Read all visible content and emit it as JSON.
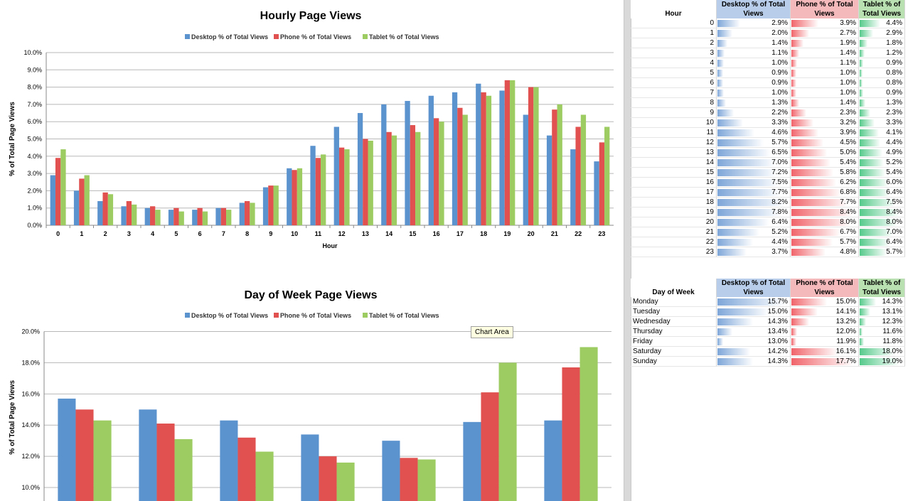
{
  "colors": {
    "desktop": "#5b93cf",
    "phone": "#e0514f",
    "tablet": "#9ccc62"
  },
  "chart_data": [
    {
      "type": "bar",
      "title": "Hourly Page Views",
      "xlabel": "Hour",
      "ylabel": "% of Total Page Views",
      "ylim": [
        0,
        10
      ],
      "yticks": [
        "0.0%",
        "1.0%",
        "2.0%",
        "3.0%",
        "4.0%",
        "5.0%",
        "6.0%",
        "7.0%",
        "8.0%",
        "9.0%",
        "10.0%"
      ],
      "legend": "top",
      "grid": true,
      "categories": [
        "0",
        "1",
        "2",
        "3",
        "4",
        "5",
        "6",
        "7",
        "8",
        "9",
        "10",
        "11",
        "12",
        "13",
        "14",
        "15",
        "16",
        "17",
        "18",
        "19",
        "20",
        "21",
        "22",
        "23"
      ],
      "series": [
        {
          "name": "Desktop % of Total Views",
          "values": [
            2.9,
            2.0,
            1.4,
            1.1,
            1.0,
            0.9,
            0.9,
            1.0,
            1.3,
            2.2,
            3.3,
            4.6,
            5.7,
            6.5,
            7.0,
            7.2,
            7.5,
            7.7,
            8.2,
            7.8,
            6.4,
            5.2,
            4.4,
            3.7
          ]
        },
        {
          "name": "Phone % of Total Views",
          "values": [
            3.9,
            2.7,
            1.9,
            1.4,
            1.1,
            1.0,
            1.0,
            1.0,
            1.4,
            2.3,
            3.2,
            3.9,
            4.5,
            5.0,
            5.4,
            5.8,
            6.2,
            6.8,
            7.7,
            8.4,
            8.0,
            6.7,
            5.7,
            4.8
          ]
        },
        {
          "name": "Tablet % of Total Views",
          "values": [
            4.4,
            2.9,
            1.8,
            1.2,
            0.9,
            0.8,
            0.8,
            0.9,
            1.3,
            2.3,
            3.3,
            4.1,
            4.4,
            4.9,
            5.2,
            5.4,
            6.0,
            6.4,
            7.5,
            8.4,
            8.0,
            7.0,
            6.4,
            5.7
          ]
        }
      ]
    },
    {
      "type": "bar",
      "title": "Day of Week Page Views",
      "xlabel": "",
      "ylabel": "% of Total Page Views",
      "ylim": [
        9,
        20
      ],
      "yticks": [
        "10.0%",
        "12.0%",
        "14.0%",
        "16.0%",
        "18.0%",
        "20.0%"
      ],
      "legend": "top",
      "grid": true,
      "categories": [
        "Monday",
        "Tuesday",
        "Wednesday",
        "Thursday",
        "Friday",
        "Saturday",
        "Sunday"
      ],
      "series": [
        {
          "name": "Desktop % of Total Views",
          "values": [
            15.7,
            15.0,
            14.3,
            13.4,
            13.0,
            14.2,
            14.3
          ]
        },
        {
          "name": "Phone % of Total Views",
          "values": [
            15.0,
            14.1,
            13.2,
            12.0,
            11.9,
            16.1,
            17.7
          ]
        },
        {
          "name": "Tablet % of Total Views",
          "values": [
            14.3,
            13.1,
            12.3,
            11.6,
            11.8,
            18.0,
            19.0
          ]
        }
      ]
    }
  ],
  "tooltip": "Chart Area",
  "table1": {
    "label_header": "Hour",
    "headers": [
      "Desktop % of Total Views",
      "Phone % of Total Views",
      "Tablet % of Total Views"
    ],
    "rows": [
      [
        "0",
        "2.9%",
        "3.9%",
        "4.4%"
      ],
      [
        "1",
        "2.0%",
        "2.7%",
        "2.9%"
      ],
      [
        "2",
        "1.4%",
        "1.9%",
        "1.8%"
      ],
      [
        "3",
        "1.1%",
        "1.4%",
        "1.2%"
      ],
      [
        "4",
        "1.0%",
        "1.1%",
        "0.9%"
      ],
      [
        "5",
        "0.9%",
        "1.0%",
        "0.8%"
      ],
      [
        "6",
        "0.9%",
        "1.0%",
        "0.8%"
      ],
      [
        "7",
        "1.0%",
        "1.0%",
        "0.9%"
      ],
      [
        "8",
        "1.3%",
        "1.4%",
        "1.3%"
      ],
      [
        "9",
        "2.2%",
        "2.3%",
        "2.3%"
      ],
      [
        "10",
        "3.3%",
        "3.2%",
        "3.3%"
      ],
      [
        "11",
        "4.6%",
        "3.9%",
        "4.1%"
      ],
      [
        "12",
        "5.7%",
        "4.5%",
        "4.4%"
      ],
      [
        "13",
        "6.5%",
        "5.0%",
        "4.9%"
      ],
      [
        "14",
        "7.0%",
        "5.4%",
        "5.2%"
      ],
      [
        "15",
        "7.2%",
        "5.8%",
        "5.4%"
      ],
      [
        "16",
        "7.5%",
        "6.2%",
        "6.0%"
      ],
      [
        "17",
        "7.7%",
        "6.8%",
        "6.4%"
      ],
      [
        "18",
        "8.2%",
        "7.7%",
        "7.5%"
      ],
      [
        "19",
        "7.8%",
        "8.4%",
        "8.4%"
      ],
      [
        "20",
        "6.4%",
        "8.0%",
        "8.0%"
      ],
      [
        "21",
        "5.2%",
        "6.7%",
        "7.0%"
      ],
      [
        "22",
        "4.4%",
        "5.7%",
        "6.4%"
      ],
      [
        "23",
        "3.7%",
        "4.8%",
        "5.7%"
      ]
    ]
  },
  "table2": {
    "label_header": "Day of Week",
    "headers": [
      "Desktop % of Total Views",
      "Phone % of Total Views",
      "Tablet % of Total Views"
    ],
    "rows": [
      [
        "Monday",
        "15.7%",
        "15.0%",
        "14.3%"
      ],
      [
        "Tuesday",
        "15.0%",
        "14.1%",
        "13.1%"
      ],
      [
        "Wednesday",
        "14.3%",
        "13.2%",
        "12.3%"
      ],
      [
        "Thursday",
        "13.4%",
        "12.0%",
        "11.6%"
      ],
      [
        "Friday",
        "13.0%",
        "11.9%",
        "11.8%"
      ],
      [
        "Saturday",
        "14.2%",
        "16.1%",
        "18.0%"
      ],
      [
        "Sunday",
        "14.3%",
        "17.7%",
        "19.0%"
      ]
    ]
  }
}
